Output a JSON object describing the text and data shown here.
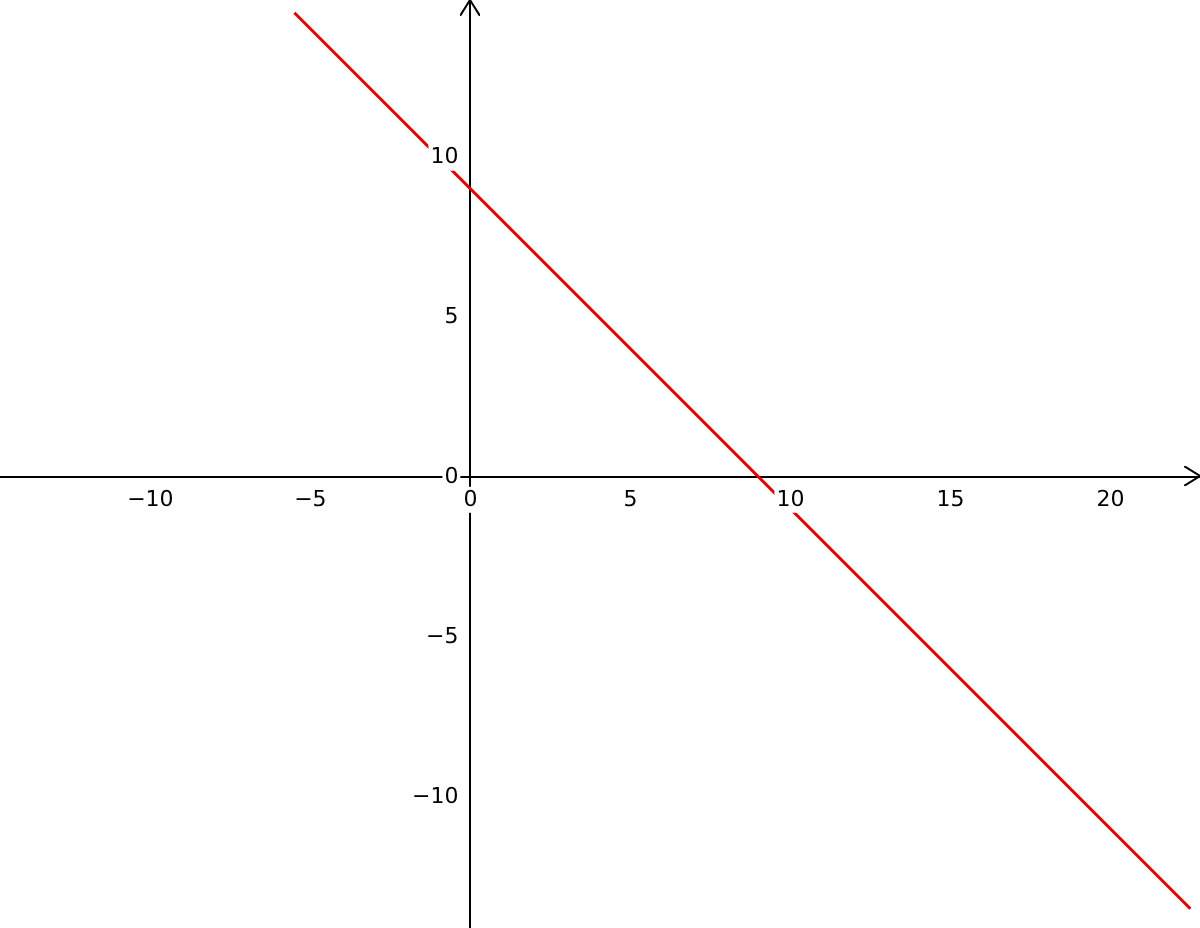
{
  "chart_data": {
    "type": "line",
    "xlim": [
      -14.7,
      22.8
    ],
    "ylim": [
      -14.1,
      14.9
    ],
    "xticks": [
      -10,
      -5,
      0,
      5,
      10,
      15,
      20
    ],
    "yticks": [
      -10,
      -5,
      0,
      5,
      10
    ],
    "series": [
      {
        "color": "#e00000",
        "x": [
          -5.5,
          22.5
        ],
        "values": [
          14.5,
          -13.5
        ]
      }
    ],
    "grid": false,
    "legend": false,
    "marker": "none",
    "line_style": "solid"
  }
}
